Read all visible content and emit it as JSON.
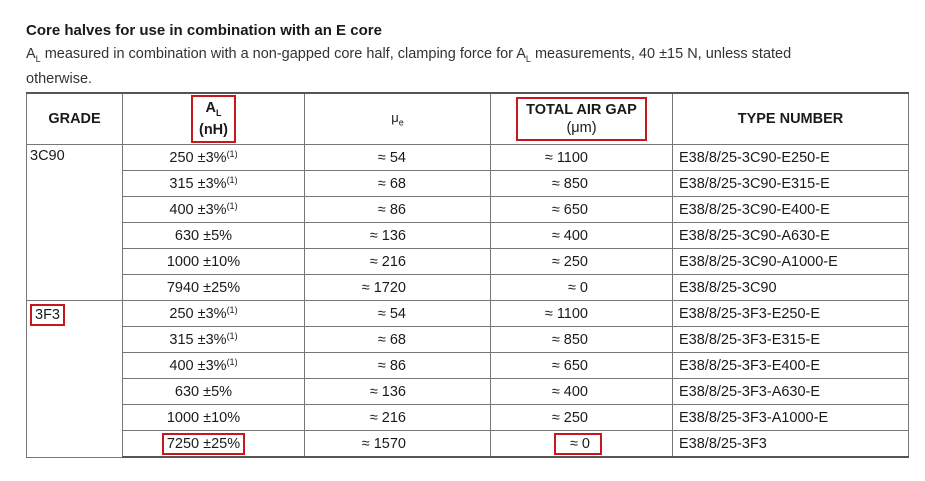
{
  "heading": "Core halves for use in combination with an E core",
  "note": {
    "a": "A",
    "a_sub": "L",
    "text1": " measured in combination with a non-gapped core half, clamping force for A",
    "text2": " measurements, 40 ±15 N, unless stated otherwise."
  },
  "colors": {
    "highlight": "#c8161d"
  },
  "columns": {
    "grade": "GRADE",
    "al": "A",
    "al_sub": "L",
    "al_unit": "(nH)",
    "mu": "μ",
    "mu_sub": "e",
    "gap": "TOTAL AIR GAP",
    "gap_unit": "(μm)",
    "type": "TYPE NUMBER"
  },
  "groups": [
    {
      "grade": "3C90",
      "grade_highlighted": false,
      "rows": [
        {
          "al": "250 ±3%",
          "note": "(1)",
          "mu": "≈ 54",
          "gap": "≈ 1100",
          "type": "E38/8/25-3C90-E250-E"
        },
        {
          "al": "315 ±3%",
          "note": "(1)",
          "mu": "≈ 68",
          "gap": "≈ 850",
          "type": "E38/8/25-3C90-E315-E"
        },
        {
          "al": "400 ±3%",
          "note": "(1)",
          "mu": "≈ 86",
          "gap": "≈ 650",
          "type": "E38/8/25-3C90-E400-E"
        },
        {
          "al": "630 ±5%",
          "note": "",
          "mu": "≈ 136",
          "gap": "≈ 400",
          "type": "E38/8/25-3C90-A630-E"
        },
        {
          "al": "1000 ±10%",
          "note": "",
          "mu": "≈ 216",
          "gap": "≈ 250",
          "type": "E38/8/25-3C90-A1000-E"
        },
        {
          "al": "7940 ±25%",
          "note": "",
          "mu": "≈ 1720",
          "gap": "≈ 0",
          "type": "E38/8/25-3C90"
        }
      ]
    },
    {
      "grade": "3F3",
      "grade_highlighted": true,
      "rows": [
        {
          "al": "250 ±3%",
          "note": "(1)",
          "mu": "≈ 54",
          "gap": "≈ 1100",
          "type": "E38/8/25-3F3-E250-E"
        },
        {
          "al": "315 ±3%",
          "note": "(1)",
          "mu": "≈ 68",
          "gap": "≈ 850",
          "type": "E38/8/25-3F3-E315-E"
        },
        {
          "al": "400 ±3%",
          "note": "(1)",
          "mu": "≈ 86",
          "gap": "≈ 650",
          "type": "E38/8/25-3F3-E400-E"
        },
        {
          "al": "630 ±5%",
          "note": "",
          "mu": "≈ 136",
          "gap": "≈ 400",
          "type": "E38/8/25-3F3-A630-E"
        },
        {
          "al": "1000 ±10%",
          "note": "",
          "mu": "≈ 216",
          "gap": "≈ 250",
          "type": "E38/8/25-3F3-A1000-E"
        },
        {
          "al": "7250 ±25%",
          "note": "",
          "mu": "≈ 1570",
          "gap": "≈ 0",
          "type": "E38/8/25-3F3",
          "al_highlighted": true,
          "gap_highlighted": true
        }
      ]
    }
  ]
}
